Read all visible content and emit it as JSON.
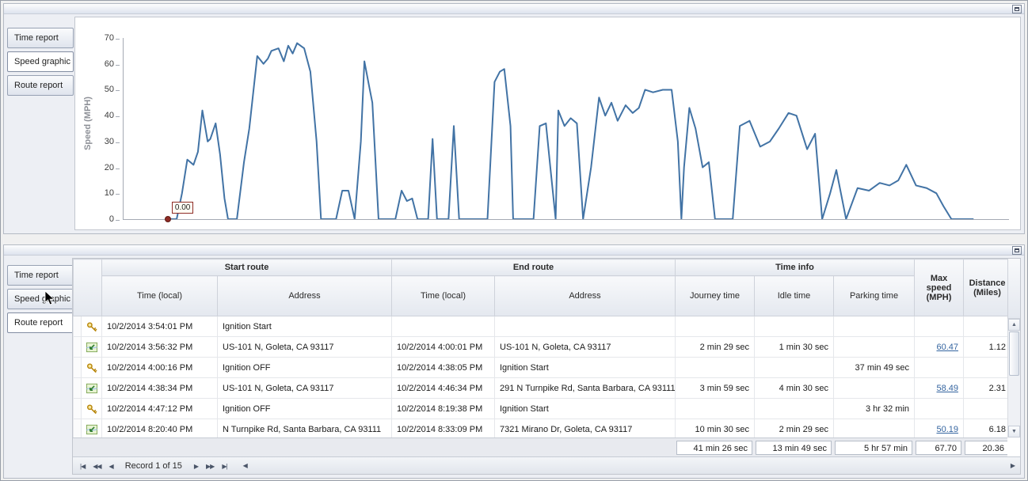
{
  "icons": {
    "scroll_up": "▲",
    "scroll_down": "▼",
    "hscroll_left": "◀",
    "hscroll_right": "▶"
  },
  "top_panel": {
    "tabs": [
      {
        "label": "Time report",
        "active": false
      },
      {
        "label": "Speed graphic",
        "active": true
      },
      {
        "label": "Route report",
        "active": false
      }
    ],
    "chart_data": {
      "type": "line",
      "title": "",
      "xlabel": "",
      "ylabel": "Speed (MPH)",
      "ylim": [
        0,
        70
      ],
      "yticks": [
        70,
        60,
        50,
        40,
        30,
        20,
        10,
        0
      ],
      "grid": false,
      "legend": false,
      "line_color": "#4273a5",
      "marker": {
        "label": "0.00",
        "color": "#8e2b25",
        "x": 50,
        "y": 0
      },
      "points": [
        [
          50,
          0
        ],
        [
          60,
          0
        ],
        [
          66,
          10
        ],
        [
          72,
          23
        ],
        [
          79,
          21
        ],
        [
          84,
          26
        ],
        [
          89,
          42
        ],
        [
          95,
          30
        ],
        [
          98,
          31
        ],
        [
          104,
          37
        ],
        [
          109,
          25
        ],
        [
          114,
          8
        ],
        [
          118,
          0
        ],
        [
          128,
          0
        ],
        [
          136,
          22
        ],
        [
          142,
          35
        ],
        [
          151,
          63
        ],
        [
          158,
          60
        ],
        [
          163,
          62
        ],
        [
          167,
          65
        ],
        [
          175,
          66
        ],
        [
          181,
          61
        ],
        [
          186,
          67
        ],
        [
          191,
          64
        ],
        [
          196,
          68
        ],
        [
          204,
          66
        ],
        [
          211,
          57
        ],
        [
          218,
          30
        ],
        [
          223,
          0
        ],
        [
          240,
          0
        ],
        [
          247,
          11
        ],
        [
          254,
          11
        ],
        [
          261,
          0
        ],
        [
          268,
          30
        ],
        [
          272,
          61
        ],
        [
          277,
          52
        ],
        [
          281,
          45
        ],
        [
          288,
          0
        ],
        [
          307,
          0
        ],
        [
          314,
          11
        ],
        [
          320,
          7
        ],
        [
          326,
          8
        ],
        [
          332,
          0
        ],
        [
          344,
          0
        ],
        [
          349,
          31
        ],
        [
          354,
          0
        ],
        [
          367,
          0
        ],
        [
          373,
          36
        ],
        [
          379,
          0
        ],
        [
          411,
          0
        ],
        [
          419,
          53
        ],
        [
          425,
          57
        ],
        [
          430,
          58
        ],
        [
          437,
          36
        ],
        [
          440,
          0
        ],
        [
          463,
          0
        ],
        [
          470,
          36
        ],
        [
          477,
          37
        ],
        [
          482,
          20
        ],
        [
          488,
          0
        ],
        [
          491,
          42
        ],
        [
          498,
          36
        ],
        [
          505,
          39
        ],
        [
          512,
          37
        ],
        [
          519,
          0
        ],
        [
          528,
          20
        ],
        [
          537,
          47
        ],
        [
          544,
          40
        ],
        [
          551,
          45
        ],
        [
          558,
          38
        ],
        [
          567,
          44
        ],
        [
          575,
          41
        ],
        [
          582,
          43
        ],
        [
          589,
          50
        ],
        [
          598,
          49
        ],
        [
          609,
          50
        ],
        [
          619,
          50
        ],
        [
          626,
          30
        ],
        [
          630,
          0
        ],
        [
          633,
          20
        ],
        [
          639,
          43
        ],
        [
          646,
          35
        ],
        [
          654,
          20
        ],
        [
          661,
          22
        ],
        [
          668,
          0
        ],
        [
          688,
          0
        ],
        [
          696,
          36
        ],
        [
          707,
          38
        ],
        [
          719,
          28
        ],
        [
          730,
          30
        ],
        [
          740,
          35
        ],
        [
          751,
          41
        ],
        [
          760,
          40
        ],
        [
          772,
          27
        ],
        [
          781,
          33
        ],
        [
          789,
          0
        ],
        [
          798,
          10
        ],
        [
          805,
          19
        ],
        [
          816,
          0
        ],
        [
          829,
          12
        ],
        [
          842,
          11
        ],
        [
          854,
          14
        ],
        [
          865,
          13
        ],
        [
          875,
          15
        ],
        [
          884,
          21
        ],
        [
          895,
          13
        ],
        [
          907,
          12
        ],
        [
          918,
          10
        ],
        [
          926,
          5
        ],
        [
          935,
          0
        ],
        [
          960,
          0
        ]
      ]
    }
  },
  "bottom_panel": {
    "tabs": [
      {
        "label": "Time report",
        "active": false
      },
      {
        "label": "Speed graphic",
        "active": false
      },
      {
        "label": "Route report",
        "active": true
      }
    ],
    "grid": {
      "groups": [
        {
          "label": "Start route"
        },
        {
          "label": "End route"
        },
        {
          "label": "Time info"
        }
      ],
      "columns": {
        "start_time": "Time (local)",
        "start_address": "Address",
        "end_time": "Time (local)",
        "end_address": "Address",
        "journey": "Journey time",
        "idle": "Idle time",
        "parking": "Parking time",
        "max_speed": "Max speed (MPH)",
        "distance": "Distance (Miles)"
      },
      "rows": [
        {
          "icon": "key",
          "start_time": "10/2/2014 3:54:01 PM",
          "start_address": "Ignition Start",
          "end_time": "",
          "end_address": "",
          "journey": "",
          "idle": "",
          "parking": "",
          "max_speed": "",
          "distance": ""
        },
        {
          "icon": "route",
          "start_time": "10/2/2014 3:56:32 PM",
          "start_address": "US-101 N, Goleta, CA 93117",
          "end_time": "10/2/2014 4:00:01 PM",
          "end_address": "US-101 N, Goleta, CA 93117",
          "journey": "2 min 29 sec",
          "idle": "1 min 30 sec",
          "parking": "",
          "max_speed": "60.47",
          "distance": "1.12"
        },
        {
          "icon": "key",
          "start_time": "10/2/2014 4:00:16 PM",
          "start_address": "Ignition OFF",
          "end_time": "10/2/2014 4:38:05 PM",
          "end_address": "Ignition Start",
          "journey": "",
          "idle": "",
          "parking": "37 min 49 sec",
          "max_speed": "",
          "distance": ""
        },
        {
          "icon": "route",
          "start_time": "10/2/2014 4:38:34 PM",
          "start_address": "US-101 N, Goleta, CA 93117",
          "end_time": "10/2/2014 4:46:34 PM",
          "end_address": "291 N Turnpike Rd, Santa Barbara, CA 93111",
          "journey": "3 min 59 sec",
          "idle": "4 min 30 sec",
          "parking": "",
          "max_speed": "58.49",
          "distance": "2.31"
        },
        {
          "icon": "key",
          "start_time": "10/2/2014 4:47:12 PM",
          "start_address": "Ignition OFF",
          "end_time": "10/2/2014 8:19:38 PM",
          "end_address": "Ignition Start",
          "journey": "",
          "idle": "",
          "parking": "3 hr 32 min",
          "max_speed": "",
          "distance": ""
        },
        {
          "icon": "route",
          "start_time": "10/2/2014 8:20:40 PM",
          "start_address": "N Turnpike Rd, Santa Barbara, CA 93111",
          "end_time": "10/2/2014 8:33:09 PM",
          "end_address": "7321 Mirano Dr, Goleta, CA 93117",
          "journey": "10 min 30 sec",
          "idle": "2 min 29 sec",
          "parking": "",
          "max_speed": "50.19",
          "distance": "6.18"
        }
      ],
      "summary": {
        "journey": "41 min 26 sec",
        "idle": "13 min 49 sec",
        "parking": "5 hr 57 min",
        "max_speed": "67.70",
        "distance": "20.36"
      },
      "pager": {
        "record_label": "Record 1 of 15",
        "buttons_left": [
          "|◀",
          "◀◀",
          "◀"
        ],
        "buttons_right": [
          "▶",
          "▶▶",
          "▶|"
        ]
      }
    }
  }
}
